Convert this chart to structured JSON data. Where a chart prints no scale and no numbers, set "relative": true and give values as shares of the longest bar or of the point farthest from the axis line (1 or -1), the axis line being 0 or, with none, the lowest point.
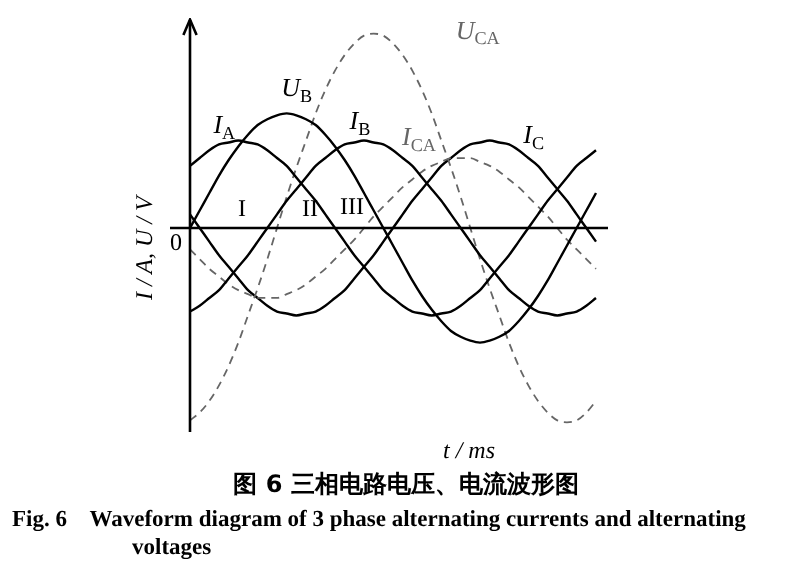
{
  "chart_data": {
    "type": "line",
    "title": "图 6    三相电路电压、电流波形图",
    "subtitle": "Fig. 6    Waveform diagram of 3 phase alternating currents and alternating voltages",
    "xlabel": "t / ms",
    "ylabel": "I / A, U / V",
    "relative": true,
    "legend": false,
    "marker": "none",
    "annotations": [
      "0",
      "I",
      "II",
      "III"
    ],
    "categories": [
      null,
      null,
      null,
      null,
      null,
      null,
      null,
      null,
      null,
      null,
      null,
      null,
      null,
      null,
      null,
      null,
      null,
      null,
      null,
      null,
      null,
      null,
      null,
      null,
      null,
      null,
      null,
      null,
      null,
      null,
      null,
      null,
      null,
      null,
      null,
      null,
      null,
      null,
      null,
      null,
      null,
      null,
      null
    ],
    "series": [
      {
        "name": "I$_{A}$",
        "color": "#000000",
        "line_style": "solid",
        "values": [
          0.32,
          0.36,
          0.4,
          0.43,
          0.44,
          0.45,
          0.44,
          0.43,
          0.4,
          0.36,
          0.32,
          0.26,
          0.2,
          0.14,
          0.07,
          0,
          -0.07,
          -0.14,
          -0.2,
          -0.26,
          -0.32,
          -0.36,
          -0.4,
          -0.43,
          -0.44,
          -0.45,
          -0.44,
          -0.43,
          -0.4,
          -0.36,
          -0.32,
          -0.26,
          -0.2,
          -0.14,
          -0.07,
          0,
          0.07,
          0.14,
          0.2,
          0.26,
          0.32,
          0.36,
          0.4
        ]
      },
      {
        "name": "U$_{B}$",
        "color": "#000000",
        "line_style": "solid",
        "values": [
          0,
          0.09,
          0.18,
          0.27,
          0.35,
          0.42,
          0.48,
          0.53,
          0.56,
          0.58,
          0.59,
          0.58,
          0.56,
          0.53,
          0.48,
          0.42,
          0.35,
          0.27,
          0.18,
          0.09,
          0,
          -0.09,
          -0.18,
          -0.27,
          -0.35,
          -0.42,
          -0.48,
          -0.53,
          -0.56,
          -0.58,
          -0.59,
          -0.58,
          -0.56,
          -0.53,
          -0.48,
          -0.42,
          -0.35,
          -0.27,
          -0.18,
          -0.09,
          0,
          0.09,
          0.18
        ]
      },
      {
        "name": "I$_{B}$",
        "color": "#000000",
        "line_style": "solid",
        "values": [
          -0.43,
          -0.4,
          -0.36,
          -0.32,
          -0.26,
          -0.2,
          -0.14,
          -0.07,
          0,
          0.07,
          0.14,
          0.2,
          0.26,
          0.32,
          0.36,
          0.4,
          0.43,
          0.44,
          0.45,
          0.44,
          0.43,
          0.4,
          0.36,
          0.32,
          0.26,
          0.2,
          0.14,
          0.07,
          0,
          -0.07,
          -0.14,
          -0.2,
          -0.26,
          -0.32,
          -0.36,
          -0.4,
          -0.43,
          -0.44,
          -0.45,
          -0.44,
          -0.43,
          -0.4,
          -0.36
        ]
      },
      {
        "name": "U$_{CA}$",
        "color": "#666666",
        "line_style": "dashed",
        "values": [
          -0.99,
          -0.95,
          -0.89,
          -0.81,
          -0.71,
          -0.59,
          -0.45,
          -0.31,
          -0.16,
          0,
          0.16,
          0.31,
          0.45,
          0.59,
          0.71,
          0.81,
          0.89,
          0.95,
          0.99,
          1,
          0.99,
          0.95,
          0.89,
          0.81,
          0.71,
          0.59,
          0.45,
          0.31,
          0.16,
          0,
          -0.16,
          -0.31,
          -0.45,
          -0.59,
          -0.71,
          -0.81,
          -0.89,
          -0.95,
          -0.99,
          -1,
          -0.99,
          -0.95,
          -0.89
        ]
      },
      {
        "name": "I$_{CA}$",
        "color": "#666666",
        "line_style": "dashed",
        "values": [
          -0.11,
          -0.16,
          -0.21,
          -0.25,
          -0.29,
          -0.32,
          -0.34,
          -0.36,
          -0.36,
          -0.36,
          -0.34,
          -0.32,
          -0.29,
          -0.25,
          -0.21,
          -0.16,
          -0.11,
          -0.06,
          0,
          0.06,
          0.11,
          0.16,
          0.21,
          0.25,
          0.29,
          0.32,
          0.34,
          0.36,
          0.36,
          0.36,
          0.34,
          0.32,
          0.29,
          0.25,
          0.21,
          0.16,
          0.11,
          0.06,
          0,
          -0.06,
          -0.11,
          -0.16,
          -0.21
        ]
      },
      {
        "name": "I$_{C}$",
        "color": "#000000",
        "line_style": "solid",
        "values": [
          0.07,
          0,
          -0.07,
          -0.14,
          -0.2,
          -0.26,
          -0.32,
          -0.36,
          -0.4,
          -0.43,
          -0.44,
          -0.45,
          -0.44,
          -0.43,
          -0.4,
          -0.36,
          -0.32,
          -0.26,
          -0.2,
          -0.14,
          -0.07,
          0,
          0.07,
          0.14,
          0.2,
          0.26,
          0.32,
          0.36,
          0.4,
          0.43,
          0.44,
          0.45,
          0.44,
          0.43,
          0.4,
          0.36,
          0.32,
          0.26,
          0.2,
          0.14,
          0.07,
          0,
          -0.07
        ]
      }
    ]
  }
}
